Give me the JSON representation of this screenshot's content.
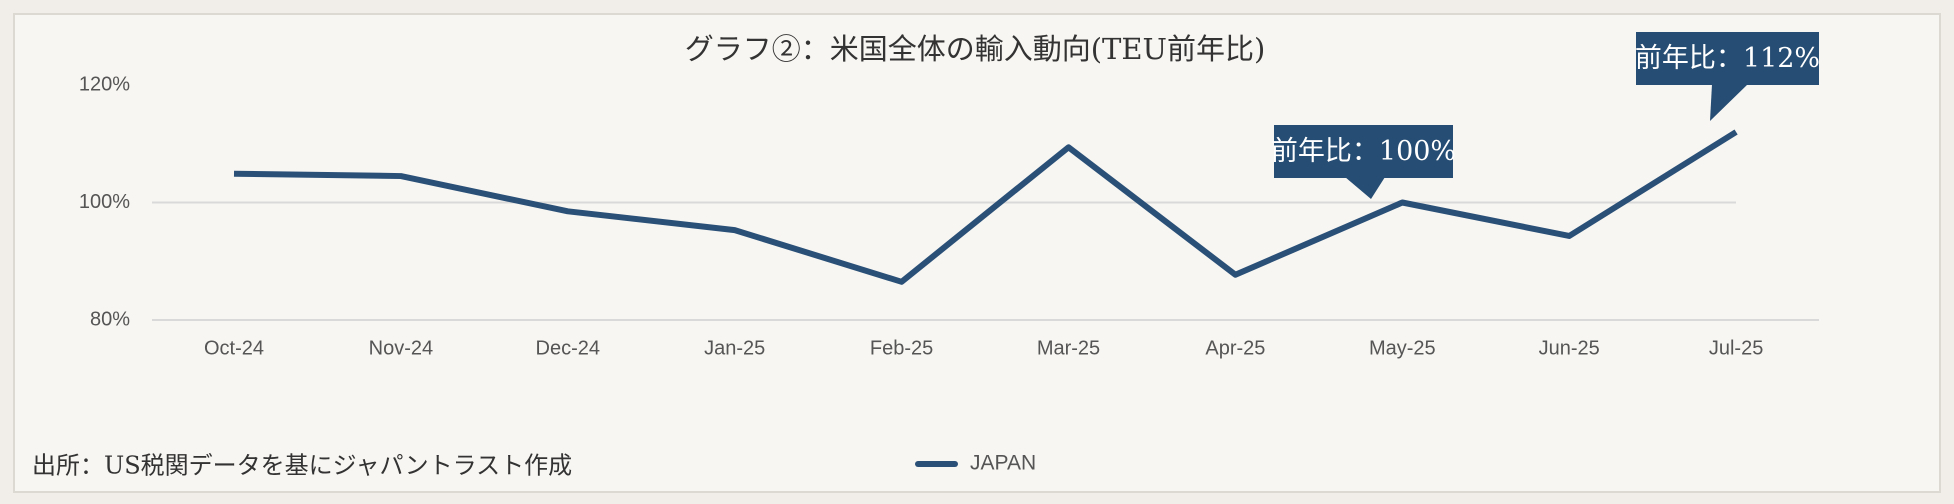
{
  "chart_data": {
    "type": "line",
    "title": "グラフ②：米国全体の輸入動向(TEU前年比)",
    "categories": [
      "Oct-24",
      "Nov-24",
      "Dec-24",
      "Jan-25",
      "Feb-25",
      "Mar-25",
      "Apr-25",
      "May-25",
      "Jun-25",
      "Jul-25"
    ],
    "series": [
      {
        "name": "JAPAN",
        "color": "#2a5078",
        "values": [
          104.9,
          104.5,
          98.5,
          95.3,
          86.5,
          109.4,
          87.7,
          100,
          94.3,
          112
        ]
      }
    ],
    "ylim": [
      80,
      120
    ],
    "yticks": [
      {
        "value": 80,
        "label": "80%"
      },
      {
        "value": 100,
        "label": "100%"
      },
      {
        "value": 120,
        "label": "120%"
      }
    ],
    "grid": true,
    "annotations": [
      "前年比：100%",
      "前年比：112%"
    ],
    "source": "出所：US税関データを基にジャパントラスト作成"
  }
}
